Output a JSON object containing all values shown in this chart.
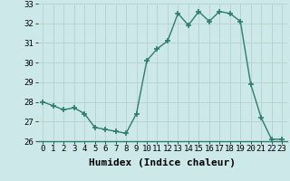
{
  "x": [
    0,
    1,
    2,
    3,
    4,
    5,
    6,
    7,
    8,
    9,
    10,
    11,
    12,
    13,
    14,
    15,
    16,
    17,
    18,
    19,
    20,
    21,
    22,
    23
  ],
  "y": [
    28.0,
    27.8,
    27.6,
    27.7,
    27.4,
    26.7,
    26.6,
    26.5,
    26.4,
    27.4,
    30.1,
    30.7,
    31.1,
    32.5,
    31.9,
    32.6,
    32.1,
    32.6,
    32.5,
    32.1,
    28.9,
    27.2,
    26.1,
    26.1
  ],
  "ylim": [
    26,
    33
  ],
  "xlim_min": -0.5,
  "xlim_max": 23.5,
  "yticks": [
    26,
    27,
    28,
    29,
    30,
    31,
    32,
    33
  ],
  "xticks": [
    0,
    1,
    2,
    3,
    4,
    5,
    6,
    7,
    8,
    9,
    10,
    11,
    12,
    13,
    14,
    15,
    16,
    17,
    18,
    19,
    20,
    21,
    22,
    23
  ],
  "xlabel": "Humidex (Indice chaleur)",
  "line_color": "#2d7d6e",
  "marker": "+",
  "marker_size": 4,
  "bg_color": "#cce8e8",
  "grid_color": "#b8d0d0",
  "tick_label_fontsize": 6.5,
  "xlabel_fontsize": 8,
  "line_width": 1.0
}
